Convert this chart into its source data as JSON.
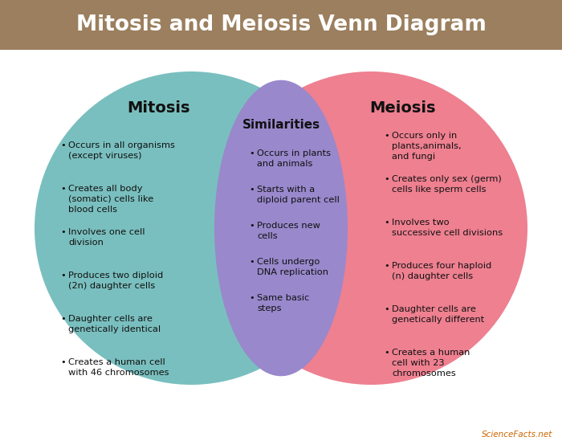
{
  "title": "Mitosis and Meiosis Venn Diagram",
  "title_bg_color": "#9b7f5e",
  "title_text_color": "#ffffff",
  "bg_color": "#ffffff",
  "circle_left_color": "#7abfbf",
  "circle_right_color": "#ee8090",
  "overlap_color": "#9988cc",
  "left_title": "Mitosis",
  "right_title": "Meiosis",
  "center_title": "Similarities",
  "left_items": [
    "Occurs in all organisms\n(except viruses)",
    "Creates all body\n(somatic) cells like\nblood cells",
    "Involves one cell\ndivision",
    "Produces two diploid\n(2n) daughter cells",
    "Daughter cells are\ngenetically identical",
    "Creates a human cell\nwith 46 chromosomes"
  ],
  "right_items": [
    "Occurs only in\nplants,animals,\nand fungi",
    "Creates only sex (germ)\ncells like sperm cells",
    "Involves two\nsuccessive cell divisions",
    "Produces four haploid\n(n) daughter cells",
    "Daughter cells are\ngenetically different",
    "Creates a human\ncell with 23\nchromosomes"
  ],
  "center_items": [
    "Occurs in plants\nand animals",
    "Starts with a\ndiploid parent cell",
    "Produces new\ncells",
    "Cells undergo\nDNA replication",
    "Same basic\nsteps"
  ],
  "watermark": "ScienceFacts.net"
}
